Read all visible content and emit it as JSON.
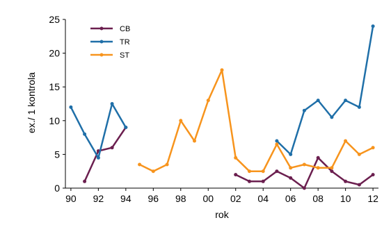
{
  "chart_data": {
    "type": "line",
    "title": "",
    "xlabel": "rok",
    "ylabel": "ex./ 1 kontrola",
    "xlim": [
      1989.6,
      2012.4
    ],
    "ylim": [
      0,
      25
    ],
    "x_ticks": [
      1990,
      1992,
      1994,
      1996,
      1998,
      2000,
      2002,
      2004,
      2006,
      2008,
      2010,
      2012
    ],
    "x_tick_labels": [
      "90",
      "92",
      "94",
      "96",
      "98",
      "00",
      "02",
      "04",
      "06",
      "08",
      "10",
      "12"
    ],
    "y_ticks": [
      0,
      5,
      10,
      15,
      20,
      25
    ],
    "y_tick_labels": [
      "0",
      "5",
      "10",
      "15",
      "20",
      "25"
    ],
    "grid": false,
    "legend_position": "top-left",
    "series": [
      {
        "name": "CB",
        "color": "#6b1f4f",
        "segments": [
          [
            [
              1991,
              1
            ],
            [
              1992,
              5.5
            ],
            [
              1993,
              6
            ],
            [
              1994,
              9
            ]
          ],
          [
            [
              2002,
              2
            ],
            [
              2003,
              1
            ],
            [
              2004,
              1
            ],
            [
              2005,
              2.5
            ],
            [
              2006,
              1.5
            ],
            [
              2007,
              0
            ],
            [
              2008,
              4.5
            ],
            [
              2009,
              2.5
            ],
            [
              2010,
              1
            ],
            [
              2011,
              0.5
            ],
            [
              2012,
              2
            ]
          ]
        ]
      },
      {
        "name": "TR",
        "color": "#1f6fa8",
        "segments": [
          [
            [
              1990,
              12
            ],
            [
              1991,
              8
            ],
            [
              1992,
              4.5
            ],
            [
              1993,
              12.5
            ],
            [
              1994,
              9
            ]
          ],
          [
            [
              2005,
              7
            ],
            [
              2006,
              5
            ],
            [
              2007,
              11.5
            ],
            [
              2008,
              13
            ],
            [
              2009,
              10.5
            ],
            [
              2010,
              13
            ],
            [
              2011,
              12
            ],
            [
              2012,
              24
            ]
          ]
        ]
      },
      {
        "name": "ST",
        "color": "#f7941d",
        "segments": [
          [
            [
              1995,
              3.5
            ],
            [
              1996,
              2.5
            ],
            [
              1997,
              3.5
            ],
            [
              1998,
              10
            ],
            [
              1999,
              7
            ],
            [
              2000,
              13
            ],
            [
              2001,
              17.5
            ],
            [
              2002,
              4.5
            ],
            [
              2003,
              2.5
            ],
            [
              2004,
              2.5
            ],
            [
              2005,
              6.5
            ],
            [
              2006,
              3
            ],
            [
              2007,
              3.5
            ],
            [
              2008,
              3
            ],
            [
              2009,
              3
            ],
            [
              2010,
              7
            ],
            [
              2011,
              5
            ],
            [
              2012,
              6
            ]
          ]
        ]
      }
    ]
  }
}
